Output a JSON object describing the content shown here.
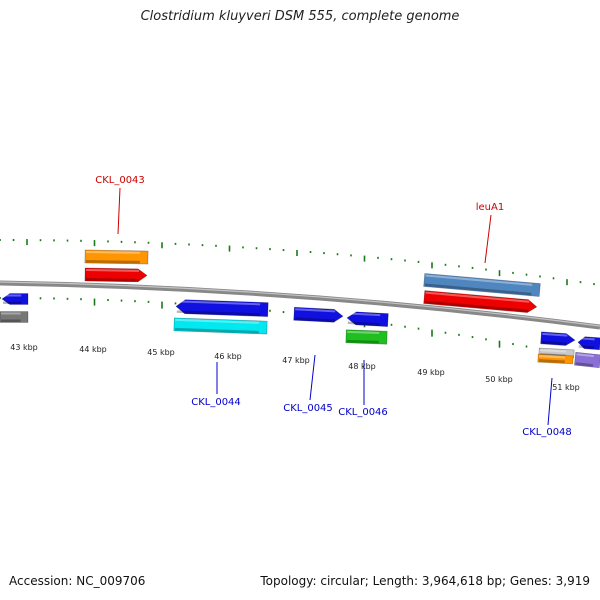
{
  "title": "Clostridium kluyveri DSM 555, complete genome",
  "footer": {
    "accession": "Accession: NC_009706",
    "topology": "Topology: circular; Length: 3,964,618 bp; Genes: 3,919"
  },
  "ruler": {
    "labels": [
      "43 kbp",
      "44 kbp",
      "45 kbp",
      "46 kbp",
      "47 kbp",
      "48 kbp",
      "49 kbp",
      "50 kbp",
      "51 kbp"
    ]
  },
  "colors": {
    "backbone": "#888888",
    "tick": "#1a7a1a",
    "label_red": "#cc0000",
    "label_blue": "#0000cc",
    "blue": "#1010e0",
    "gray": "#777777",
    "orange": "#ff9500",
    "red": "#ee0000",
    "cyan": "#00e8f0",
    "steelblue": "#4f86bf",
    "green": "#1fbf1f",
    "purple": "#8a6fd6",
    "lightgray": "#c8c8c8"
  },
  "genes": [
    {
      "name": "",
      "color": "blue",
      "strand": "reverse"
    },
    {
      "name": "",
      "color": "gray",
      "strand": "none"
    },
    {
      "name": "",
      "color": "orange",
      "strand": "none"
    },
    {
      "name": "CKL_0043",
      "color": "red",
      "strand": "forward"
    },
    {
      "name": "CKL_0044",
      "color": "blue",
      "strand": "reverse"
    },
    {
      "name": "",
      "color": "cyan",
      "strand": "none"
    },
    {
      "name": "CKL_0045",
      "color": "blue",
      "strand": "forward"
    },
    {
      "name": "",
      "color": "blue",
      "strand": "reverse"
    },
    {
      "name": "CKL_0046",
      "color": "green",
      "strand": "none"
    },
    {
      "name": "",
      "color": "steelblue",
      "strand": "none"
    },
    {
      "name": "leuA1",
      "color": "red",
      "strand": "forward"
    },
    {
      "name": "CKL_0048",
      "color": "blue",
      "strand": "forward"
    },
    {
      "name": "",
      "color": "blue",
      "strand": "reverse"
    },
    {
      "name": "",
      "color": "lightgray",
      "strand": "none"
    },
    {
      "name": "",
      "color": "orange",
      "strand": "none"
    },
    {
      "name": "",
      "color": "purple",
      "strand": "none"
    }
  ]
}
